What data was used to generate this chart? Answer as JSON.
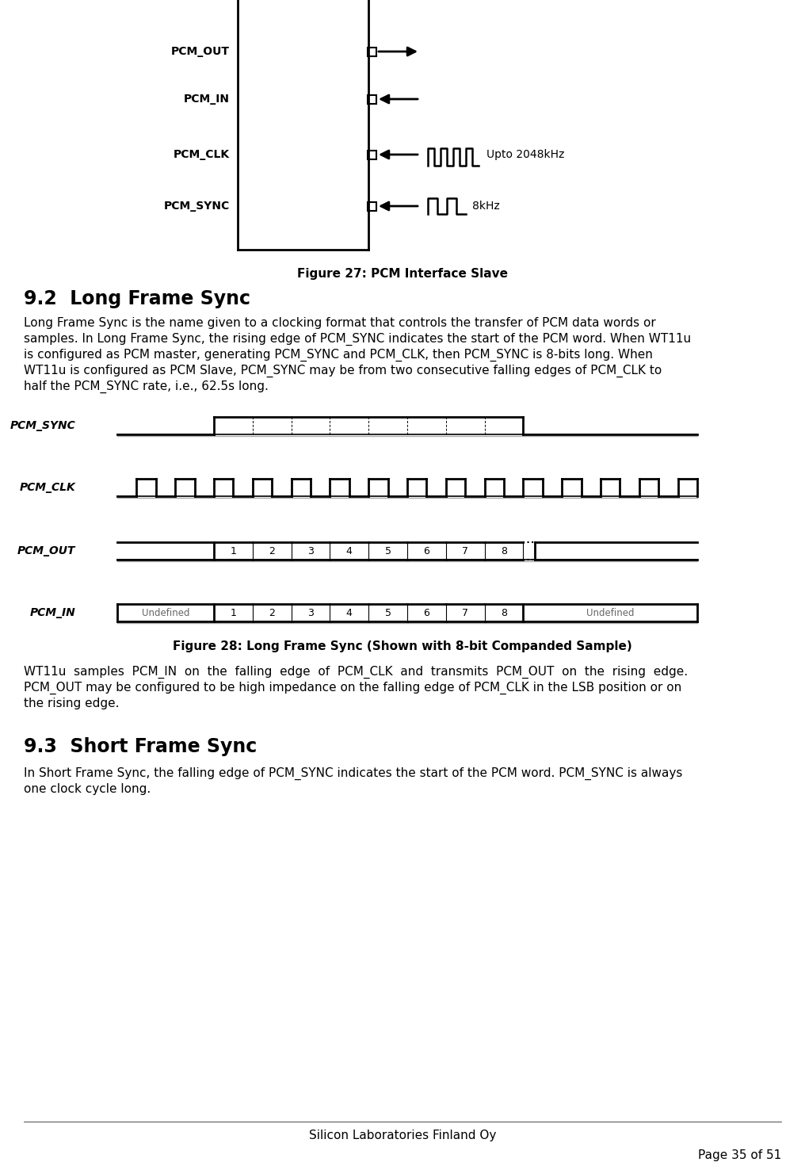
{
  "page_bg": "#ffffff",
  "fig27_caption": "Figure 27: PCM Interface Slave",
  "fig28_caption": "Figure 28: Long Frame Sync (Shown with 8-bit Companded Sample)",
  "section_92_title": "9.2  Long Frame Sync",
  "section_92_body_line1": "Long Frame Sync is the name given to a clocking format that controls the transfer of PCM data words or",
  "section_92_body_line2": "samples. In Long Frame Sync, the rising edge of PCM_SYNC indicates the start of the PCM word. When WT11u",
  "section_92_body_line3": "is configured as PCM master, generating PCM_SYNC and PCM_CLK, then PCM_SYNC is 8-bits long. When",
  "section_92_body_line4": "WT11u is configured as PCM Slave, PCM_SYNC may be from two consecutive falling edges of PCM_CLK to",
  "section_92_body_line5": "half the PCM_SYNC rate, i.e., 62.5s long.",
  "section_93_title": "9.3  Short Frame Sync",
  "section_93_body_line1": "In Short Frame Sync, the falling edge of PCM_SYNC indicates the start of the PCM word. PCM_SYNC is always",
  "section_93_body_line2": "one clock cycle long.",
  "body_after28_line1": "WT11u  samples  PCM_IN  on  the  falling  edge  of  PCM_CLK  and  transmits  PCM_OUT  on  the  rising  edge.",
  "body_after28_line2": "PCM_OUT may be configured to be high impedance on the falling edge of PCM_CLK in the LSB position or on",
  "body_after28_line3": "the rising edge.",
  "footer_center": "Silicon Laboratories Finland Oy",
  "footer_right": "Page 35 of 51",
  "slave_labels": [
    "PCM_OUT",
    "PCM_IN",
    "PCM_CLK",
    "PCM_SYNC"
  ],
  "slave_arrows": [
    "right",
    "left",
    "left",
    "left"
  ],
  "slave_clk_text": [
    "",
    "",
    "Upto 2048kHz",
    "8kHz"
  ],
  "signal_labels": [
    "PCM_SYNC",
    "PCM_CLK",
    "PCM_OUT",
    "PCM_IN"
  ],
  "pcm_bits": [
    "1",
    "2",
    "3",
    "4",
    "5",
    "6",
    "7",
    "8"
  ]
}
